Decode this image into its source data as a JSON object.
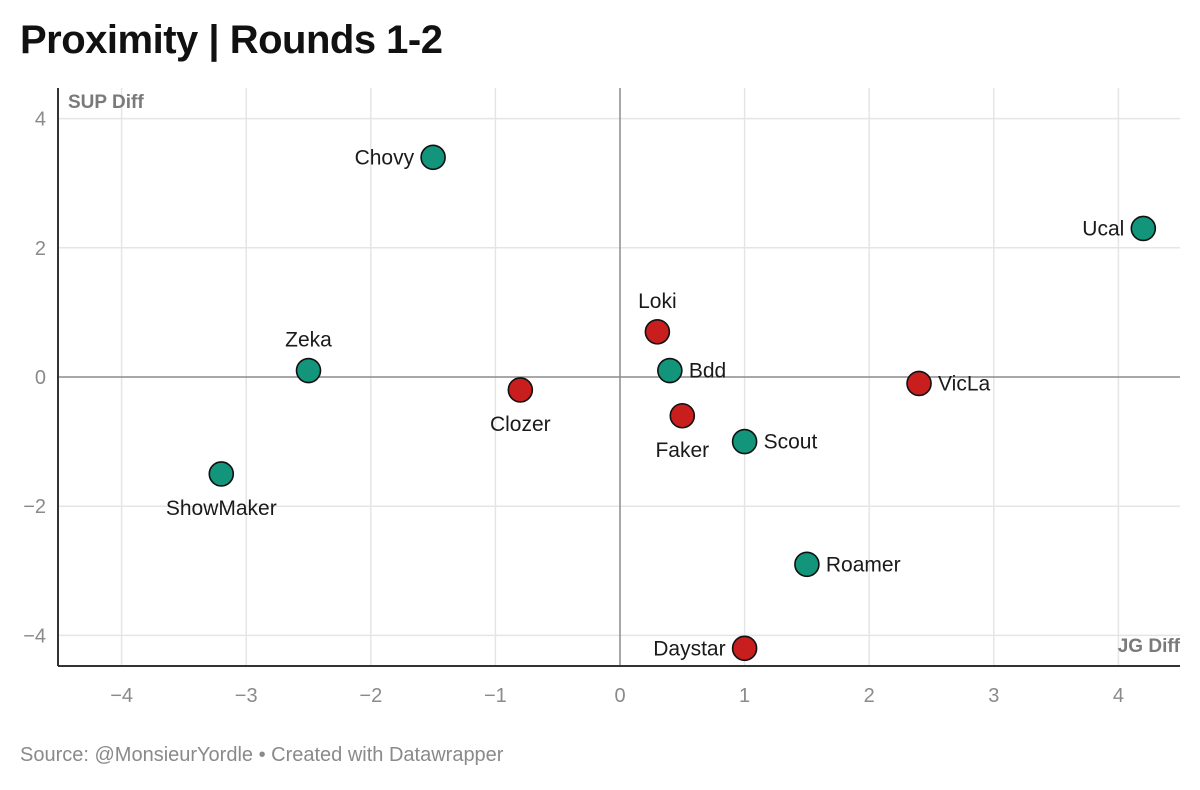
{
  "title": "Proximity | Rounds 1-2",
  "footer": {
    "source": "Source: @MonsieurYordle • Created with Datawrapper"
  },
  "colors": {
    "green": "#12957a",
    "red": "#c81e1e",
    "grid": "#e5e5e5",
    "zero_line": "#8c8c8c",
    "axis": "#333333",
    "tick_text": "#8a8a8a"
  },
  "chart_data": {
    "type": "scatter",
    "xlabel": "JG Diff",
    "ylabel": "SUP Diff",
    "xlim": [
      -4.5,
      4.5
    ],
    "ylim": [
      -4.5,
      4.5
    ],
    "xticks": [
      -4,
      -3,
      -2,
      -1,
      0,
      1,
      2,
      3,
      4
    ],
    "yticks": [
      -4,
      -2,
      0,
      2,
      4
    ],
    "xtick_labels": [
      "−4",
      "−3",
      "−2",
      "−1",
      "0",
      "1",
      "2",
      "3",
      "4"
    ],
    "ytick_labels": [
      "−4",
      "−2",
      "0",
      "2",
      "4"
    ],
    "grid": true,
    "points": [
      {
        "label": "Chovy",
        "x": -1.5,
        "y": 3.4,
        "color": "green",
        "label_pos": "left"
      },
      {
        "label": "Ucal",
        "x": 4.2,
        "y": 2.3,
        "color": "green",
        "label_pos": "left"
      },
      {
        "label": "Loki",
        "x": 0.3,
        "y": 0.7,
        "color": "red",
        "label_pos": "top"
      },
      {
        "label": "Zeka",
        "x": -2.5,
        "y": 0.1,
        "color": "green",
        "label_pos": "top"
      },
      {
        "label": "Bdd",
        "x": 0.4,
        "y": 0.1,
        "color": "green",
        "label_pos": "right"
      },
      {
        "label": "Clozer",
        "x": -0.8,
        "y": -0.2,
        "color": "red",
        "label_pos": "bottom"
      },
      {
        "label": "VicLa",
        "x": 2.4,
        "y": -0.1,
        "color": "red",
        "label_pos": "right"
      },
      {
        "label": "Faker",
        "x": 0.5,
        "y": -0.6,
        "color": "red",
        "label_pos": "bottom"
      },
      {
        "label": "Scout",
        "x": 1.0,
        "y": -1.0,
        "color": "green",
        "label_pos": "right"
      },
      {
        "label": "ShowMaker",
        "x": -3.2,
        "y": -1.5,
        "color": "green",
        "label_pos": "bottom"
      },
      {
        "label": "Roamer",
        "x": 1.5,
        "y": -2.9,
        "color": "green",
        "label_pos": "right"
      },
      {
        "label": "Daystar",
        "x": 1.0,
        "y": -4.2,
        "color": "red",
        "label_pos": "left"
      }
    ]
  }
}
